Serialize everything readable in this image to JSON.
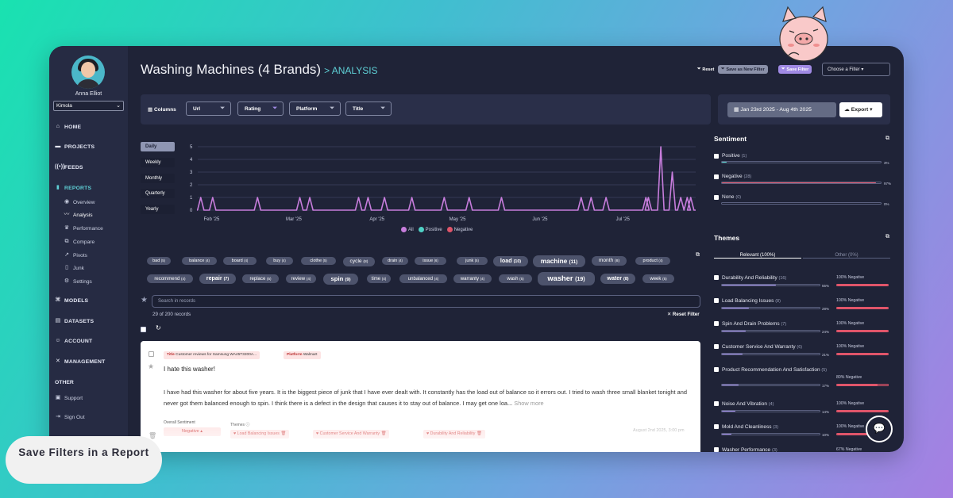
{
  "user": {
    "name": "Anna Elliot",
    "org": "Kimola"
  },
  "nav": {
    "home": "HOME",
    "projects": "PROJECTS",
    "feeds": "FEEDS",
    "reports": "REPORTS",
    "reports_sub": [
      "Overview",
      "Analysis",
      "Performance",
      "Compare",
      "Pivots",
      "Junk",
      "Settings"
    ],
    "models": "MODELS",
    "datasets": "DATASETS",
    "account": "ACCOUNT",
    "management": "MANAGEMENT",
    "other": "OTHER",
    "support": "Support",
    "signout": "Sign Out"
  },
  "header": {
    "title": "Washing Machines (4 Brands)",
    "crumb": "> ANALYSIS",
    "reset": "Reset",
    "save_new": "Save as New Filter",
    "save": "Save Filter",
    "choose": "Choose a Filter"
  },
  "filters": {
    "columns": "Columns",
    "buttons": [
      "Url",
      "Rating",
      "Platform",
      "Title"
    ]
  },
  "date_range": "Jan 23rd 2025 - Aug 4th 2025",
  "export": "Export",
  "granularity": [
    "Daily",
    "Weekly",
    "Monthly",
    "Quarterly",
    "Yearly"
  ],
  "chart_data": {
    "type": "line",
    "y_ticks": [
      0,
      1,
      2,
      3,
      4,
      5
    ],
    "ylim": [
      0,
      5
    ],
    "x_ticks": [
      "Feb '25",
      "Mar '25",
      "Apr '25",
      "May '25",
      "Jun '25",
      "Jul '25"
    ],
    "legend": [
      "All",
      "Positive",
      "Negative"
    ],
    "grid": true,
    "series": [
      {
        "name": "All",
        "color": "#c77ddc",
        "spikes": [
          [
            0.006,
            1
          ],
          [
            0.03,
            1
          ],
          [
            0.12,
            1
          ],
          [
            0.205,
            1
          ],
          [
            0.225,
            1
          ],
          [
            0.323,
            1
          ],
          [
            0.342,
            1
          ],
          [
            0.375,
            1
          ],
          [
            0.43,
            1
          ],
          [
            0.495,
            1
          ],
          [
            0.545,
            1
          ],
          [
            0.61,
            1
          ],
          [
            0.77,
            1
          ],
          [
            0.79,
            1
          ],
          [
            0.82,
            1
          ],
          [
            0.9,
            1
          ],
          [
            0.905,
            1
          ],
          [
            0.93,
            5
          ],
          [
            0.953,
            3
          ],
          [
            0.97,
            1
          ],
          [
            0.983,
            1
          ],
          [
            0.99,
            1
          ]
        ]
      }
    ]
  },
  "tags": [
    {
      "word": "bad",
      "count": "(5)"
    },
    {
      "word": "balance",
      "count": "(4)"
    },
    {
      "word": "board",
      "count": "(4)"
    },
    {
      "word": "buy",
      "count": "(4)"
    },
    {
      "word": "clothe",
      "count": "(5)"
    },
    {
      "word": "cycle",
      "count": "(8)"
    },
    {
      "word": "drain",
      "count": "(4)"
    },
    {
      "word": "issue",
      "count": "(6)"
    },
    {
      "word": "junk",
      "count": "(5)"
    },
    {
      "word": "load",
      "count": "(10)"
    },
    {
      "word": "machine",
      "count": "(11)"
    },
    {
      "word": "month",
      "count": "(8)"
    },
    {
      "word": "product",
      "count": "(4)"
    },
    {
      "word": "recommend",
      "count": "(4)"
    },
    {
      "word": "repair",
      "count": "(7)"
    },
    {
      "word": "replace",
      "count": "(5)"
    },
    {
      "word": "review",
      "count": "(4)"
    },
    {
      "word": "spin",
      "count": "(9)"
    },
    {
      "word": "time",
      "count": "(4)"
    },
    {
      "word": "unbalanced",
      "count": "(4)"
    },
    {
      "word": "warranty",
      "count": "(4)"
    },
    {
      "word": "wash",
      "count": "(5)"
    },
    {
      "word": "washer",
      "count": "(19)"
    },
    {
      "word": "water",
      "count": "(8)"
    },
    {
      "word": "week",
      "count": "(5)"
    }
  ],
  "search": {
    "placeholder": "Search in records"
  },
  "records_count": "29 of 200 records",
  "reset_filter": "Reset Filter",
  "record": {
    "title_label": "Title",
    "title_value": "Customer reviews for Samsung WA45T3200A...",
    "platform_label": "Platform",
    "platform_value": "Walmart",
    "heading": "I hate this washer!",
    "body": "I have had this washer for about five years. It is the biggest piece of junk that I have ever dealt with. It constantly has the load out of balance so it errors out. I tried to wash three small blanket tonight and never got them balanced enough to spin. I think there is a defect in the design that causes it to stay out of balance. I may get one loa...",
    "show_more": "Show more",
    "sentiment_label": "Overall Sentiment",
    "sentiment": "Negative",
    "themes_label": "Themes",
    "themes": [
      "Load Balancing Issues",
      "Customer Service And Warranty",
      "Durability And Reliability"
    ],
    "date": "August 2nd 2025, 3:00 pm"
  },
  "sentiment": {
    "title": "Sentiment",
    "items": [
      {
        "label": "Positive",
        "count": "(1)",
        "pct": "3%",
        "value": 0.03,
        "color": "#4fd1c5"
      },
      {
        "label": "Negative",
        "count": "(28)",
        "pct": "97%",
        "value": 0.97,
        "color": "#e0556a"
      },
      {
        "label": "None",
        "count": "(0)",
        "pct": "0%",
        "value": 0,
        "color": "#4fd1c5"
      }
    ]
  },
  "themes": {
    "title": "Themes",
    "tab_relevant": "Relevant (100%)",
    "tab_other": "Other (0%)",
    "items": [
      {
        "label": "Durability And Reliability",
        "count": "(16)",
        "pct": "55%",
        "value": 0.55,
        "neg": "100% Negative",
        "negv": 1.0
      },
      {
        "label": "Load Balancing Issues",
        "count": "(8)",
        "pct": "28%",
        "value": 0.28,
        "neg": "100% Negative",
        "negv": 1.0
      },
      {
        "label": "Spin And Drain Problems",
        "count": "(7)",
        "pct": "24%",
        "value": 0.24,
        "neg": "100% Negative",
        "negv": 1.0
      },
      {
        "label": "Customer Service And Warranty",
        "count": "(6)",
        "pct": "21%",
        "value": 0.21,
        "neg": "100% Negative",
        "negv": 1.0
      },
      {
        "label": "Product Recommendation And Satisfaction",
        "count": "(5)",
        "pct": "17%",
        "value": 0.17,
        "neg": "80% Negative",
        "negv": 0.8
      },
      {
        "label": "Noise And Vibration",
        "count": "(4)",
        "pct": "14%",
        "value": 0.14,
        "neg": "100% Negative",
        "negv": 1.0
      },
      {
        "label": "Mold And Cleanliness",
        "count": "(3)",
        "pct": "10%",
        "value": 0.1,
        "neg": "100% Negative",
        "negv": 1.0
      },
      {
        "label": "Washer Performance",
        "count": "(3)",
        "pct": "",
        "value": 0.1,
        "neg": "67% Negative",
        "negv": 0.67
      }
    ]
  },
  "overlay_caption": "Save Filters in a Report"
}
